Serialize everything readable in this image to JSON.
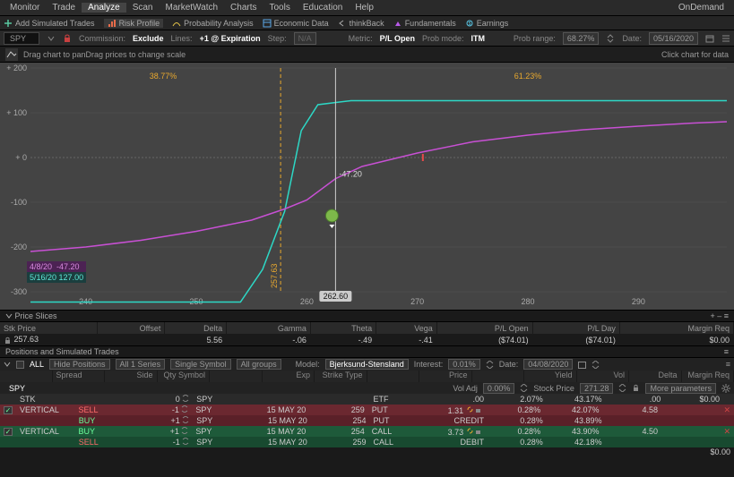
{
  "menubar": {
    "items": [
      "Monitor",
      "Trade",
      "Analyze",
      "Scan",
      "MarketWatch",
      "Charts",
      "Tools",
      "Education",
      "Help"
    ],
    "active_index": 2,
    "ondemand_label": "OnDemand"
  },
  "toolbar": {
    "items": [
      {
        "icon": "plus",
        "label": "Add Simulated Trades",
        "color": "#5ac8a0"
      },
      {
        "icon": "risk",
        "label": "Risk Profile",
        "color": "#e86b4a"
      },
      {
        "icon": "prob",
        "label": "Probability Analysis",
        "color": "#e8c84a"
      },
      {
        "icon": "econ",
        "label": "Economic Data",
        "color": "#5aa8e8"
      },
      {
        "icon": "back",
        "label": "thinkBack",
        "color": "#aaa"
      },
      {
        "icon": "fund",
        "label": "Fundamentals",
        "color": "#b85ae8"
      },
      {
        "icon": "earn",
        "label": "Earnings",
        "color": "#5ac8e8"
      }
    ]
  },
  "optbar": {
    "symbol": "SPY",
    "commission_label": "Commission:",
    "commission_value": "Exclude",
    "lines_label": "Lines:",
    "lines_value": "+1 @ Expiration",
    "step_label": "Step:",
    "step_value": "N/A",
    "metric_label": "Metric:",
    "metric_value": "P/L Open",
    "probmode_label": "Prob mode:",
    "probmode_value": "ITM",
    "probrange_label": "Prob range:",
    "probrange_value": "68.27%",
    "date_label": "Date:",
    "date_value": "05/16/2020"
  },
  "charthead": {
    "left": "Drag chart to panDrag prices to change scale",
    "right": "Click chart for data"
  },
  "chart": {
    "bg": "#444444",
    "yaxis": {
      "min": -300,
      "max": 200,
      "ticks": [
        -300,
        -200,
        -100,
        0,
        100,
        200
      ]
    },
    "xaxis": {
      "min": 235,
      "max": 298,
      "ticks": [
        240,
        250,
        260,
        270,
        280,
        290
      ]
    },
    "breakeven_x": 257.63,
    "breakeven_label": "257.63",
    "cursor_x": 262.6,
    "cursor_label": "262.60",
    "cursor_tooltip": "-47.20",
    "pct_left": "38.77%",
    "pct_left_x": 247,
    "pct_right": "61.23%",
    "pct_right_x": 280,
    "readout1": {
      "date": "4/8/20",
      "val": "-47.20",
      "color": "#d88adf"
    },
    "readout2": {
      "date": "5/16/20",
      "val": "127.00",
      "color": "#5ee8d8"
    },
    "line_magenta": {
      "color": "#c850d4",
      "points": [
        [
          235,
          -210
        ],
        [
          240,
          -200
        ],
        [
          245,
          -185
        ],
        [
          250,
          -165
        ],
        [
          255,
          -140
        ],
        [
          258,
          -115
        ],
        [
          260,
          -95
        ],
        [
          262.6,
          -47.2
        ],
        [
          265,
          -20
        ],
        [
          270,
          10
        ],
        [
          275,
          35
        ],
        [
          280,
          50
        ],
        [
          285,
          62
        ],
        [
          290,
          70
        ],
        [
          295,
          77
        ],
        [
          298,
          80
        ]
      ]
    },
    "line_teal": {
      "color": "#2dd8c6",
      "points": [
        [
          235,
          -323
        ],
        [
          245,
          -323
        ],
        [
          250,
          -323
        ],
        [
          254,
          -323
        ],
        [
          256,
          -250
        ],
        [
          258,
          -120
        ],
        [
          259.5,
          60
        ],
        [
          261,
          118
        ],
        [
          264,
          127
        ],
        [
          298,
          127
        ]
      ]
    }
  },
  "priceslices": {
    "title": "Price Slices",
    "cols": [
      "Stk Price",
      "Offset",
      "Delta",
      "Gamma",
      "Theta",
      "Vega",
      "P/L Open",
      "P/L Day",
      "Margin Req"
    ],
    "row": [
      "257.63",
      "",
      "5.56",
      "-.06",
      "-.49",
      "-.41",
      "($74.01)",
      "($74.01)",
      "$0.00"
    ]
  },
  "positions_title": "Positions and Simulated Trades",
  "filterbar": {
    "all": "ALL",
    "hide": "Hide Positions",
    "series": "All 1 Series",
    "single": "Single Symbol",
    "groups": "All groups",
    "model_label": "Model:",
    "model_value": "Bjerksund-Stensland",
    "interest_label": "Interest:",
    "interest_value": "0.01%",
    "date_label": "Date:",
    "date_value": "04/08/2020"
  },
  "poscols": [
    "",
    "Spread",
    "Side",
    "Qty Symbol",
    "",
    "Exp",
    "Strike Type",
    "",
    "Price",
    "",
    "Yield",
    "Vol",
    "Delta",
    "Margin Req"
  ],
  "paramrow": {
    "voladj_label": "Vol Adj",
    "voladj_value": "0.00%",
    "stockprice_label": "Stock Price",
    "stockprice_value": "271.28",
    "more": "More parameters"
  },
  "posrows": [
    {
      "cls": "stk",
      "cb": false,
      "spread": "STK",
      "side": "",
      "qty": "0",
      "sym": "SPY",
      "exp": "",
      "strike": "",
      "type": "ETF",
      "price": ".00",
      "yield": "2.07%",
      "vol": "43.17%",
      "delta": ".00",
      "mreq": "$0.00",
      "link": ""
    },
    {
      "cls": "red",
      "cb": true,
      "spread": "VERTICAL",
      "side": "SELL",
      "qty": "-1",
      "sym": "SPY",
      "exp": "15 MAY 20",
      "strike": "259",
      "type": "PUT",
      "price": "1.31",
      "yield": "0.28%",
      "vol": "42.07%",
      "delta": "4.58",
      "mreq": "",
      "link": true
    },
    {
      "cls": "red2",
      "cb": false,
      "spread": "",
      "side": "BUY",
      "qty": "+1",
      "sym": "SPY",
      "exp": "15 MAY 20",
      "strike": "254",
      "type": "PUT",
      "price": "CREDIT",
      "yield": "0.28%",
      "vol": "43.89%",
      "delta": "",
      "mreq": "",
      "link": ""
    },
    {
      "cls": "grn",
      "cb": true,
      "spread": "VERTICAL",
      "side": "BUY",
      "qty": "+1",
      "sym": "SPY",
      "exp": "15 MAY 20",
      "strike": "254",
      "type": "CALL",
      "price": "3.73",
      "yield": "0.28%",
      "vol": "43.90%",
      "delta": "4.50",
      "mreq": "",
      "link": true
    },
    {
      "cls": "grn2",
      "cb": false,
      "spread": "",
      "side": "SELL",
      "qty": "-1",
      "sym": "SPY",
      "exp": "15 MAY 20",
      "strike": "259",
      "type": "CALL",
      "price": "DEBIT",
      "yield": "0.28%",
      "vol": "42.18%",
      "delta": "",
      "mreq": "",
      "link": ""
    }
  ],
  "totrow": {
    "mreq": "$0.00"
  }
}
